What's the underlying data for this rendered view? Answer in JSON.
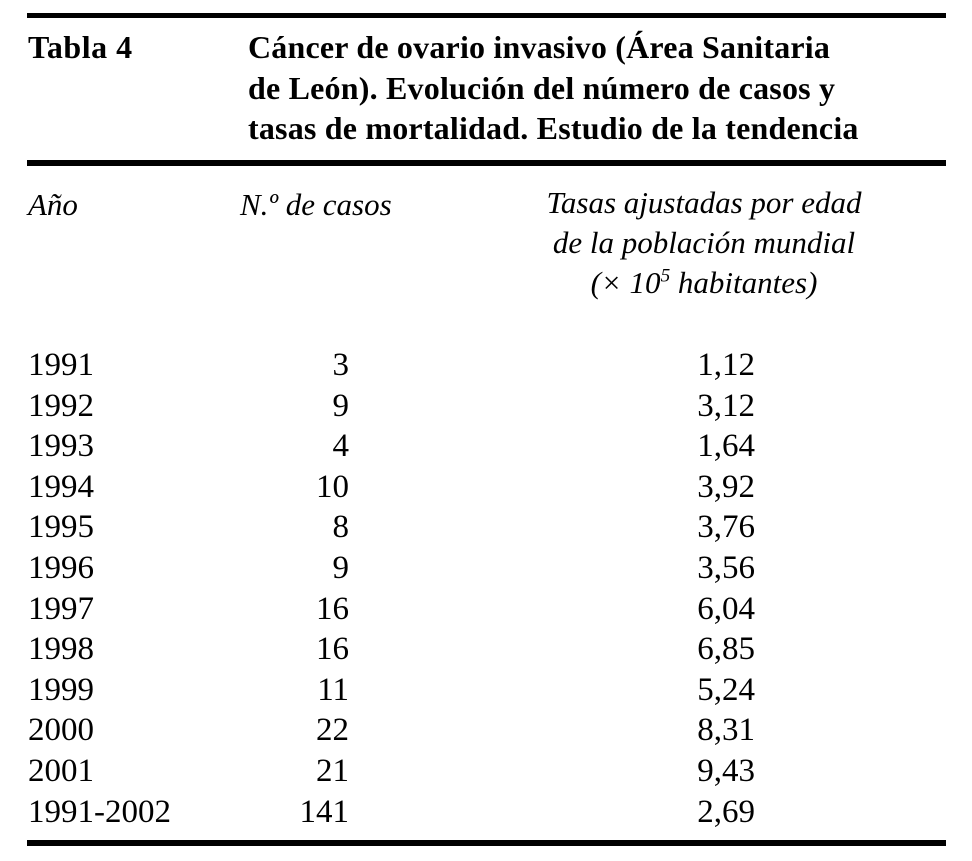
{
  "document": {
    "label": "Tabla 4",
    "title_lines": [
      "Cáncer de ovario invasivo (Área Sanitaria",
      "de León). Evolución del número de casos y",
      "tasas de mortalidad. Estudio de la tendencia"
    ]
  },
  "header": {
    "year": "Año",
    "cases": "N.º de casos",
    "rate_line1": "Tasas ajustadas por edad",
    "rate_line2": "de la población mundial",
    "rate_line3_prefix": "(× 10",
    "rate_line3_sup": "5",
    "rate_line3_suffix": " habitantes)"
  },
  "rows": [
    {
      "year": "1991",
      "cases": "3",
      "rate": "1,12"
    },
    {
      "year": "1992",
      "cases": "9",
      "rate": "3,12"
    },
    {
      "year": "1993",
      "cases": "4",
      "rate": "1,64"
    },
    {
      "year": "1994",
      "cases": "10",
      "rate": "3,92"
    },
    {
      "year": "1995",
      "cases": "8",
      "rate": "3,76"
    },
    {
      "year": "1996",
      "cases": "9",
      "rate": "3,56"
    },
    {
      "year": "1997",
      "cases": "16",
      "rate": "6,04"
    },
    {
      "year": "1998",
      "cases": "16",
      "rate": "6,85"
    },
    {
      "year": "1999",
      "cases": "11",
      "rate": "5,24"
    },
    {
      "year": "2000",
      "cases": "22",
      "rate": "8,31"
    },
    {
      "year": "2001",
      "cases": "21",
      "rate": "9,43"
    },
    {
      "year": "1991-2002",
      "cases": "141",
      "rate": "2,69"
    }
  ],
  "colors": {
    "text": "#000000",
    "rule": "#000000",
    "background": "#ffffff"
  }
}
